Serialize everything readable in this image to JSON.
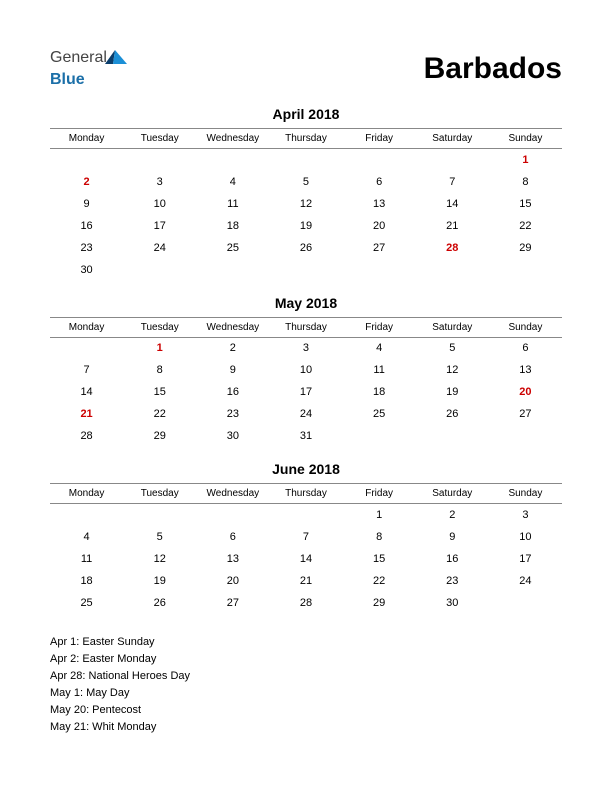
{
  "logo": {
    "text1": "General",
    "text2": "Blue"
  },
  "country": "Barbados",
  "headers": [
    "Monday",
    "Tuesday",
    "Wednesday",
    "Thursday",
    "Friday",
    "Saturday",
    "Sunday"
  ],
  "colors": {
    "holiday": "#cc0000",
    "text": "#000000",
    "border": "#888888",
    "logo_blue": "#1b6fa8"
  },
  "months": [
    {
      "title": "April 2018",
      "weeks": [
        [
          "",
          "",
          "",
          "",
          "",
          "",
          "1"
        ],
        [
          "2",
          "3",
          "4",
          "5",
          "6",
          "7",
          "8"
        ],
        [
          "9",
          "10",
          "11",
          "12",
          "13",
          "14",
          "15"
        ],
        [
          "16",
          "17",
          "18",
          "19",
          "20",
          "21",
          "22"
        ],
        [
          "23",
          "24",
          "25",
          "26",
          "27",
          "28",
          "29"
        ],
        [
          "30",
          "",
          "",
          "",
          "",
          "",
          ""
        ]
      ],
      "holidays": [
        "1",
        "2",
        "28"
      ]
    },
    {
      "title": "May 2018",
      "weeks": [
        [
          "",
          "1",
          "2",
          "3",
          "4",
          "5",
          "6"
        ],
        [
          "7",
          "8",
          "9",
          "10",
          "11",
          "12",
          "13"
        ],
        [
          "14",
          "15",
          "16",
          "17",
          "18",
          "19",
          "20"
        ],
        [
          "21",
          "22",
          "23",
          "24",
          "25",
          "26",
          "27"
        ],
        [
          "28",
          "29",
          "30",
          "31",
          "",
          "",
          ""
        ]
      ],
      "holidays": [
        "1",
        "20",
        "21"
      ]
    },
    {
      "title": "June 2018",
      "weeks": [
        [
          "",
          "",
          "",
          "",
          "1",
          "2",
          "3"
        ],
        [
          "4",
          "5",
          "6",
          "7",
          "8",
          "9",
          "10"
        ],
        [
          "11",
          "12",
          "13",
          "14",
          "15",
          "16",
          "17"
        ],
        [
          "18",
          "19",
          "20",
          "21",
          "22",
          "23",
          "24"
        ],
        [
          "25",
          "26",
          "27",
          "28",
          "29",
          "30",
          ""
        ]
      ],
      "holidays": []
    }
  ],
  "holiday_list": [
    "Apr 1: Easter Sunday",
    "Apr 2: Easter Monday",
    "Apr 28: National Heroes Day",
    "May 1: May Day",
    "May 20: Pentecost",
    "May 21: Whit Monday"
  ]
}
